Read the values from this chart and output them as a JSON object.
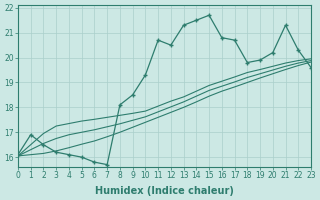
{
  "xlabel": "Humidex (Indice chaleur)",
  "x_main": [
    0,
    1,
    2,
    3,
    4,
    5,
    6,
    7,
    8,
    9,
    10,
    11,
    12,
    13,
    14,
    15,
    16,
    17,
    18,
    19,
    20,
    21,
    22,
    23
  ],
  "y_main": [
    16.1,
    16.9,
    16.5,
    16.2,
    16.1,
    16.0,
    15.8,
    15.7,
    18.1,
    18.5,
    19.3,
    20.7,
    20.5,
    21.3,
    21.5,
    21.7,
    20.8,
    20.7,
    19.8,
    19.9,
    20.2,
    21.3,
    20.3,
    19.6
  ],
  "y_line1": [
    16.05,
    16.5,
    16.95,
    17.25,
    17.35,
    17.45,
    17.52,
    17.6,
    17.68,
    17.76,
    17.85,
    18.05,
    18.25,
    18.42,
    18.65,
    18.88,
    19.05,
    19.22,
    19.4,
    19.52,
    19.65,
    19.78,
    19.88,
    19.95
  ],
  "y_line2": [
    16.05,
    16.3,
    16.55,
    16.75,
    16.9,
    17.0,
    17.1,
    17.22,
    17.34,
    17.48,
    17.62,
    17.82,
    18.02,
    18.22,
    18.45,
    18.68,
    18.85,
    19.02,
    19.2,
    19.35,
    19.5,
    19.65,
    19.78,
    19.88
  ],
  "y_line3": [
    16.05,
    16.1,
    16.15,
    16.25,
    16.38,
    16.52,
    16.65,
    16.82,
    17.0,
    17.2,
    17.4,
    17.6,
    17.8,
    18.0,
    18.22,
    18.45,
    18.65,
    18.82,
    19.0,
    19.18,
    19.35,
    19.52,
    19.68,
    19.82
  ],
  "xlim": [
    0,
    23
  ],
  "ylim": [
    15.6,
    22.1
  ],
  "yticks": [
    16,
    17,
    18,
    19,
    20,
    21,
    22
  ],
  "xticks": [
    0,
    1,
    2,
    3,
    4,
    5,
    6,
    7,
    8,
    9,
    10,
    11,
    12,
    13,
    14,
    15,
    16,
    17,
    18,
    19,
    20,
    21,
    22,
    23
  ],
  "line_color": "#2e7d6e",
  "bg_color": "#cce8e4",
  "grid_color": "#aacfcb",
  "fig_bg": "#cce8e4",
  "tick_fontsize": 5.5,
  "xlabel_fontsize": 7.0
}
